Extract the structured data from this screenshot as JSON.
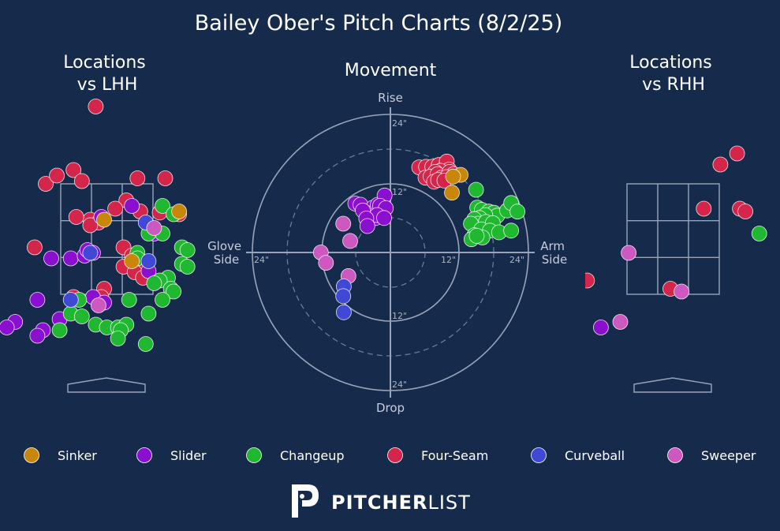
{
  "chart_title": "Bailey Ober's Pitch Charts (8/2/25)",
  "colors": {
    "background": "#162a4c",
    "Sinker": "#c8860a",
    "Slider": "#8b0fcf",
    "Changeup": "#1fb830",
    "Four-Seam": "#d4264a",
    "Curveball": "#4048d6",
    "Sweeper": "#cc58c0"
  },
  "legend": [
    "Sinker",
    "Slider",
    "Changeup",
    "Four-Seam",
    "Curveball",
    "Sweeper"
  ],
  "brand": {
    "bold": "PITCHER",
    "light": "LIST"
  },
  "chart_data": [
    {
      "type": "scatter",
      "title": "Locations\nvs LHH",
      "xlabel": "",
      "ylabel": "",
      "series": [
        {
          "name": "Four-Seam",
          "points": [
            [
              -0.2,
              4.9
            ],
            [
              -1.1,
              3.5
            ],
            [
              -0.9,
              3.65
            ],
            [
              -0.6,
              3.75
            ],
            [
              -0.45,
              3.55
            ],
            [
              0.55,
              3.6
            ],
            [
              1.05,
              3.6
            ],
            [
              0.35,
              3.2
            ],
            [
              0.15,
              3.05
            ],
            [
              0.6,
              3.0
            ],
            [
              0.95,
              2.98
            ],
            [
              -0.3,
              2.85
            ],
            [
              -0.15,
              2.8
            ],
            [
              -0.55,
              2.9
            ],
            [
              -0.3,
              2.75
            ],
            [
              0.3,
              2.35
            ],
            [
              0.45,
              2.2
            ],
            [
              0.6,
              2.1
            ],
            [
              0.3,
              2.0
            ],
            [
              -0.05,
              1.6
            ],
            [
              -0.1,
              1.45
            ],
            [
              -0.6,
              1.45
            ],
            [
              -1.3,
              2.35
            ],
            [
              0.5,
              1.9
            ],
            [
              0.65,
              1.8
            ],
            [
              1.3,
              2.95
            ]
          ]
        },
        {
          "name": "Slider",
          "points": [
            [
              0.45,
              3.1
            ],
            [
              -1.0,
              2.15
            ],
            [
              -0.65,
              2.15
            ],
            [
              -0.4,
              2.2
            ],
            [
              -0.25,
              2.25
            ],
            [
              -0.35,
              2.3
            ],
            [
              -0.1,
              2.9
            ],
            [
              0.85,
              2.6
            ],
            [
              0.75,
              1.92
            ],
            [
              -1.25,
              1.4
            ],
            [
              -0.25,
              1.45
            ],
            [
              -0.85,
              1.05
            ],
            [
              -1.15,
              0.85
            ],
            [
              -1.65,
              1.0
            ],
            [
              -1.25,
              0.75
            ],
            [
              -1.8,
              0.9
            ],
            [
              -0.05,
              1.35
            ]
          ]
        },
        {
          "name": "Changeup",
          "points": [
            [
              1.0,
              3.1
            ],
            [
              1.2,
              2.95
            ],
            [
              1.0,
              2.6
            ],
            [
              0.75,
              2.6
            ],
            [
              0.55,
              2.25
            ],
            [
              0.55,
              2.15
            ],
            [
              1.35,
              2.35
            ],
            [
              1.45,
              2.3
            ],
            [
              1.35,
              2.05
            ],
            [
              1.45,
              2.0
            ],
            [
              1.1,
              1.8
            ],
            [
              0.95,
              1.75
            ],
            [
              0.85,
              1.7
            ],
            [
              1.15,
              1.6
            ],
            [
              1.2,
              1.55
            ],
            [
              1.0,
              1.4
            ],
            [
              0.4,
              1.4
            ],
            [
              0.75,
              1.15
            ],
            [
              -0.5,
              1.4
            ],
            [
              -0.65,
              1.15
            ],
            [
              -0.2,
              0.95
            ],
            [
              0.0,
              0.9
            ],
            [
              0.2,
              0.9
            ],
            [
              0.35,
              0.95
            ],
            [
              0.25,
              0.85
            ],
            [
              -0.85,
              0.85
            ],
            [
              0.2,
              0.7
            ],
            [
              0.7,
              0.6
            ],
            [
              -0.45,
              1.1
            ]
          ]
        },
        {
          "name": "Sinker",
          "points": [
            [
              1.3,
              3.0
            ],
            [
              0.45,
              2.1
            ],
            [
              -0.05,
              2.85
            ]
          ]
        },
        {
          "name": "Curveball",
          "points": [
            [
              0.7,
              2.8
            ],
            [
              0.75,
              2.1
            ],
            [
              -0.65,
              1.4
            ],
            [
              -0.3,
              2.25
            ]
          ]
        },
        {
          "name": "Sweeper",
          "points": [
            [
              0.85,
              2.7
            ],
            [
              -0.15,
              1.3
            ]
          ]
        }
      ]
    },
    {
      "type": "scatter",
      "title": "Movement",
      "xlabel": "Arm Side / Glove Side",
      "ylabel": "Rise / Drop",
      "axis_labels": {
        "top": "Rise",
        "bottom": "Drop",
        "left": "Glove\nSide",
        "right": "Arm\nSide"
      },
      "rings": [
        6,
        12,
        18,
        24
      ],
      "ring_labels": [
        "24\"",
        "12\"",
        "12\"",
        "24\"",
        "12\"",
        "24\"",
        "24\"",
        "24\""
      ],
      "series": [
        {
          "name": "Four-Seam",
          "points": [
            [
              5.0,
              14.8
            ],
            [
              6.2,
              14.9
            ],
            [
              7.3,
              14.9
            ],
            [
              8.4,
              15.2
            ],
            [
              9.5,
              14.8
            ],
            [
              9.8,
              15.8
            ],
            [
              10.2,
              14.4
            ],
            [
              9.6,
              13.8
            ],
            [
              8.7,
              14.2
            ],
            [
              7.8,
              14.0
            ],
            [
              6.1,
              13.0
            ],
            [
              7.0,
              13.2
            ],
            [
              8.2,
              13.6
            ],
            [
              8.9,
              13.0
            ],
            [
              7.6,
              12.3
            ],
            [
              10.3,
              14.0
            ],
            [
              11.0,
              13.6
            ],
            [
              9.8,
              13.1
            ],
            [
              8.3,
              12.6
            ],
            [
              9.4,
              12.5
            ]
          ]
        },
        {
          "name": "Sinker",
          "points": [
            [
              12.2,
              13.5
            ],
            [
              10.9,
              13.2
            ],
            [
              10.7,
              10.4
            ]
          ]
        },
        {
          "name": "Changeup",
          "points": [
            [
              14.9,
              10.9
            ],
            [
              15.1,
              7.8
            ],
            [
              15.9,
              7.4
            ],
            [
              17.1,
              7.1
            ],
            [
              18.0,
              6.9
            ],
            [
              18.6,
              6.4
            ],
            [
              16.5,
              6.5
            ],
            [
              15.5,
              6.0
            ],
            [
              14.6,
              5.8
            ],
            [
              15.3,
              5.0
            ],
            [
              16.6,
              5.3
            ],
            [
              17.8,
              5.1
            ],
            [
              14.0,
              5.0
            ],
            [
              15.8,
              4.0
            ],
            [
              17.3,
              3.8
            ],
            [
              18.9,
              3.5
            ],
            [
              14.6,
              3.0
            ],
            [
              16.0,
              2.6
            ],
            [
              20.3,
              7.3
            ],
            [
              21.0,
              8.6
            ],
            [
              22.1,
              7.1
            ],
            [
              21.0,
              3.8
            ],
            [
              14.1,
              2.3
            ],
            [
              15.0,
              2.9
            ]
          ]
        },
        {
          "name": "Slider",
          "points": [
            [
              -6.1,
              8.5
            ],
            [
              -5.2,
              8.3
            ],
            [
              -3.0,
              7.8
            ],
            [
              -3.9,
              6.8
            ],
            [
              -2.6,
              6.0
            ],
            [
              -4.8,
              7.3
            ],
            [
              -2.2,
              8.3
            ],
            [
              -1.0,
              9.9
            ],
            [
              -1.8,
              8.1
            ],
            [
              -0.8,
              7.7
            ],
            [
              -2.3,
              6.5
            ],
            [
              -1.1,
              6.0
            ],
            [
              -4.2,
              5.9
            ],
            [
              -4.0,
              4.6
            ]
          ]
        },
        {
          "name": "Sweeper",
          "points": [
            [
              -8.2,
              5.0
            ],
            [
              -7.0,
              2.0
            ],
            [
              -12.1,
              0.0
            ],
            [
              -11.2,
              -1.8
            ],
            [
              -7.3,
              -4.1
            ]
          ]
        },
        {
          "name": "Curveball",
          "points": [
            [
              -8.1,
              -5.9
            ],
            [
              -8.2,
              -7.6
            ],
            [
              -8.1,
              -10.4
            ]
          ]
        }
      ]
    },
    {
      "type": "scatter",
      "title": "Locations\nvs RHH",
      "xlabel": "",
      "ylabel": "",
      "series": [
        {
          "name": "Four-Seam",
          "points": [
            [
              1.15,
              4.05
            ],
            [
              0.85,
              3.85
            ],
            [
              0.55,
              3.05
            ],
            [
              1.2,
              3.05
            ],
            [
              1.3,
              3.0
            ],
            [
              -1.55,
              1.75
            ],
            [
              -0.05,
              1.6
            ]
          ]
        },
        {
          "name": "Changeup",
          "points": [
            [
              1.55,
              2.6
            ]
          ]
        },
        {
          "name": "Sweeper",
          "points": [
            [
              -0.8,
              2.25
            ],
            [
              0.15,
              1.55
            ],
            [
              -0.95,
              1.0
            ]
          ]
        },
        {
          "name": "Slider",
          "points": [
            [
              -1.3,
              0.9
            ]
          ]
        }
      ]
    }
  ]
}
